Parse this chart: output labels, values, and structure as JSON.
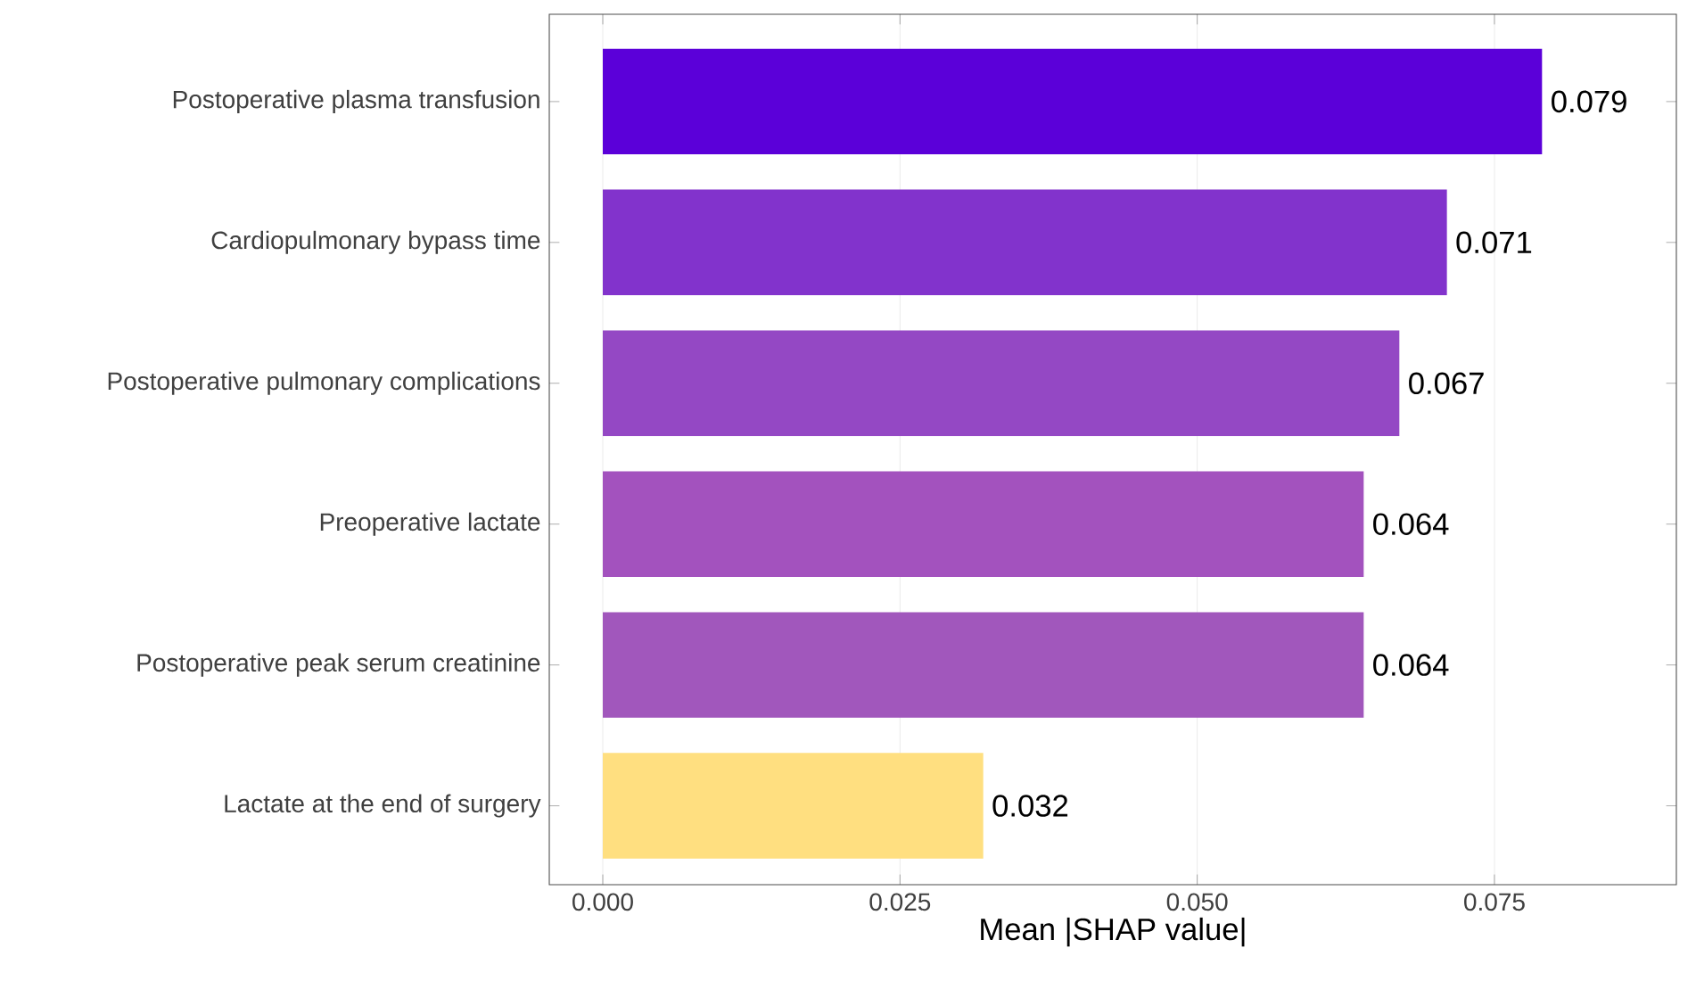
{
  "chart_data": {
    "type": "bar",
    "orientation": "horizontal",
    "xlabel": "Mean |SHAP value|",
    "categories": [
      "Postoperative plasma transfusion",
      "Cardiopulmonary bypass time",
      "Postoperative pulmonary complications",
      "Preoperative lactate",
      "Postoperative peak serum creatinine",
      "Lactate at the end of surgery"
    ],
    "values": [
      0.079,
      0.071,
      0.067,
      0.064,
      0.064,
      0.032
    ],
    "colors": [
      "#5b00d9",
      "#8233cc",
      "#9448c4",
      "#a352be",
      "#a157bc",
      "#ffdf80"
    ],
    "data_labels": true,
    "xlim": [
      -0.0045,
      0.0903
    ],
    "xticks": [
      {
        "value": 0,
        "label": "0.000"
      },
      {
        "value": 0.025,
        "label": "0.025"
      },
      {
        "value": 0.05,
        "label": "0.050"
      },
      {
        "value": 0.075,
        "label": "0.075"
      }
    ],
    "grid": "x"
  }
}
